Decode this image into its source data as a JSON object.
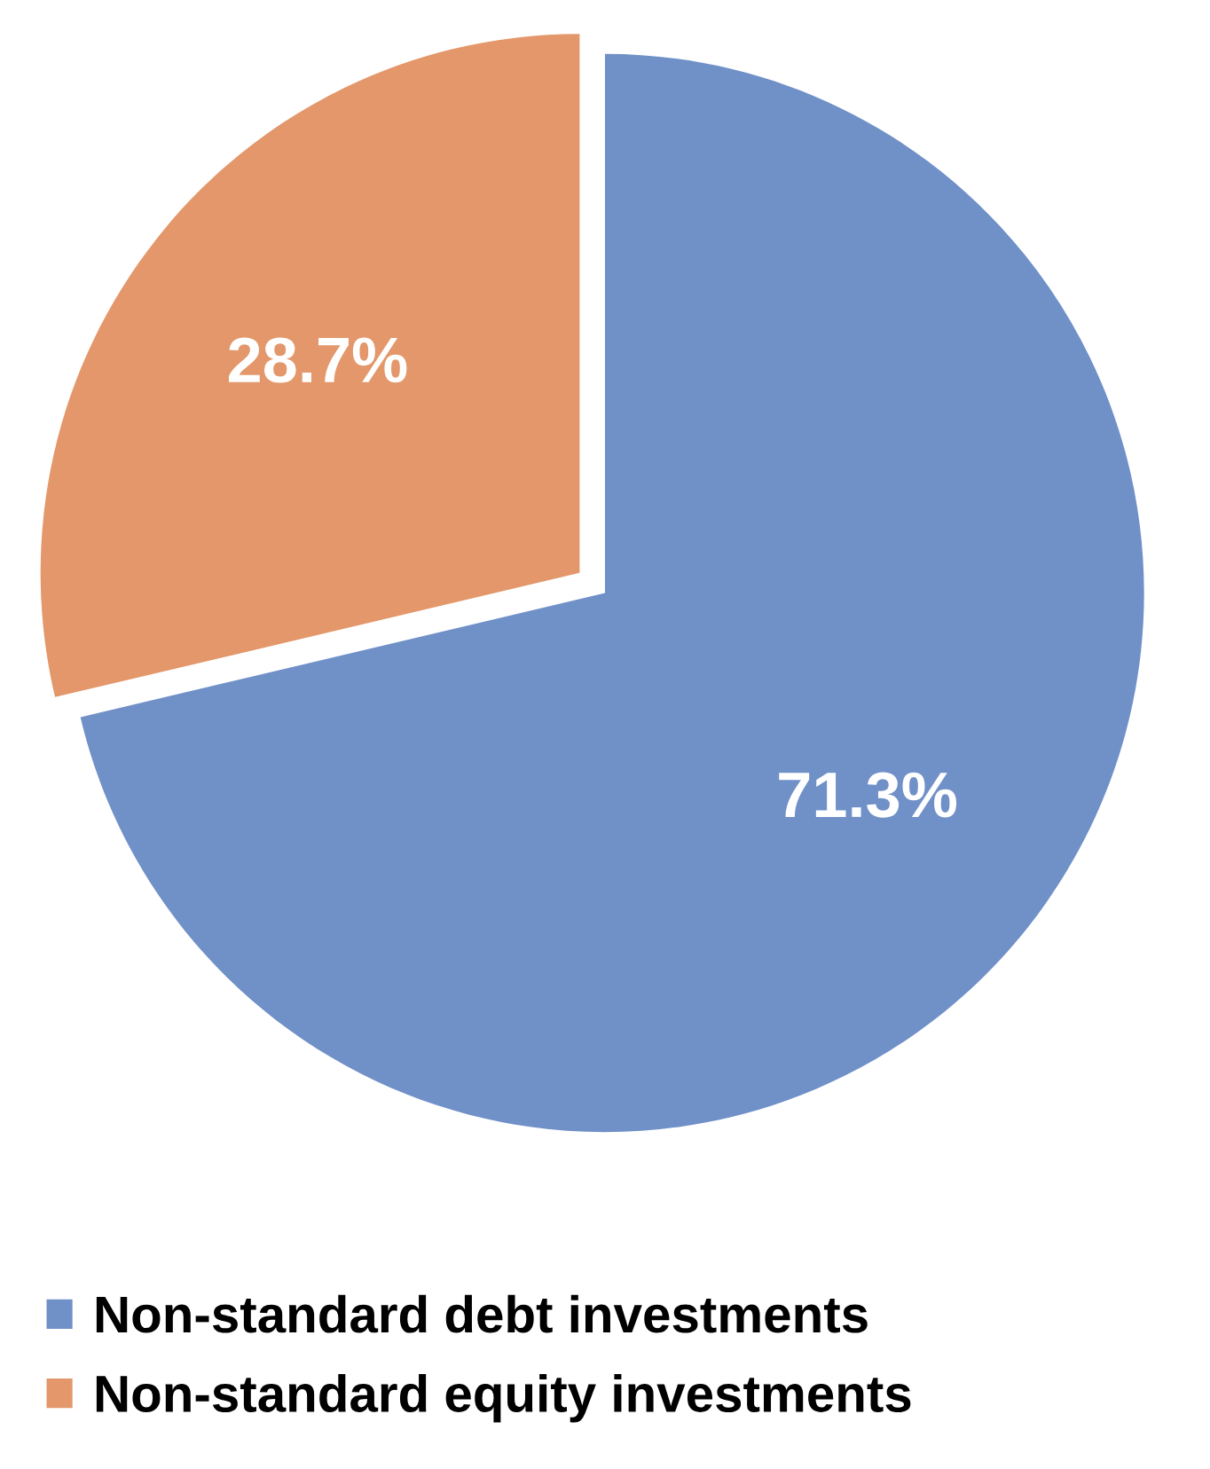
{
  "chart_data": {
    "type": "pie",
    "categories": [
      "Non-standard debt investments",
      "Non-standard equity investments"
    ],
    "values": [
      71.3,
      28.7
    ],
    "colors": [
      "#7090c8",
      "#e3976a"
    ],
    "value_labels": [
      "71.3%",
      "28.7%"
    ],
    "legend": "bottom left"
  }
}
